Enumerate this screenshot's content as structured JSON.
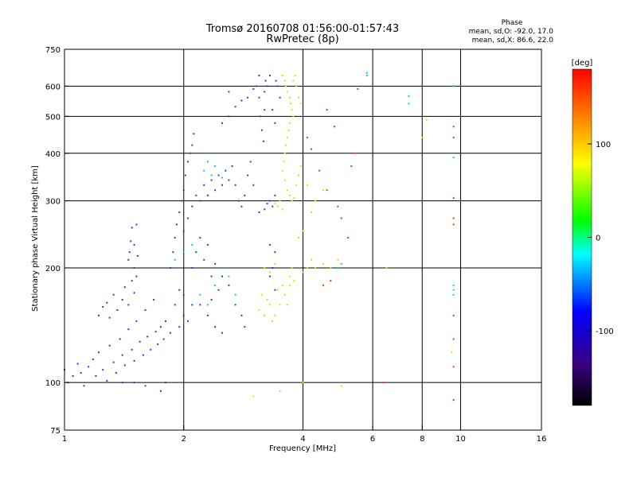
{
  "header": {
    "title_line1": "Tromsø 20160708 01:56:00-01:57:43",
    "title_line2": "RwPretec (8p)"
  },
  "phase_summary": {
    "heading": "Phase",
    "line_o": "mean, sd,O:  -92.0,  17.0",
    "line_x": "mean, sd,X:   86.6,  22.0"
  },
  "chart_data": {
    "type": "scatter",
    "xlabel": "Frequency [MHz]",
    "ylabel": "Stationary phase Virtual Height [km]",
    "x_scale": "log",
    "y_scale": "log",
    "xlim": [
      1,
      16
    ],
    "ylim": [
      75,
      750
    ],
    "x_ticks": [
      1,
      2,
      4,
      6,
      8,
      10,
      16
    ],
    "y_ticks": [
      75,
      100,
      200,
      300,
      400,
      500,
      600,
      750
    ],
    "grid_x": [
      2,
      4,
      6,
      8,
      10
    ],
    "grid_y": [
      100,
      200,
      300,
      400,
      500,
      600
    ],
    "grid": true,
    "colorbar": {
      "label": "[deg]",
      "range": [
        -180,
        180
      ],
      "ticks": [
        100,
        0,
        -100
      ],
      "colors": [
        "#000000",
        "#3a007f",
        "#0000ff",
        "#00ffff",
        "#00ff00",
        "#ffff00",
        "#ff0000"
      ]
    },
    "series": [
      {
        "points": [
          [
            1.0,
            108
          ],
          [
            1.02,
            100
          ],
          [
            1.05,
            104
          ],
          [
            1.08,
            112
          ],
          [
            1.1,
            106
          ],
          [
            1.12,
            98
          ],
          [
            1.15,
            110
          ],
          [
            1.18,
            115
          ],
          [
            1.2,
            104
          ],
          [
            1.22,
            120
          ],
          [
            1.25,
            108
          ],
          [
            1.28,
            101
          ],
          [
            1.3,
            125
          ],
          [
            1.33,
            113
          ],
          [
            1.35,
            106
          ],
          [
            1.38,
            130
          ],
          [
            1.4,
            118
          ],
          [
            1.42,
            111
          ],
          [
            1.45,
            138
          ],
          [
            1.48,
            122
          ],
          [
            1.5,
            114
          ],
          [
            1.52,
            145
          ],
          [
            1.55,
            128
          ],
          [
            1.58,
            118
          ],
          [
            1.6,
            155
          ],
          [
            1.62,
            132
          ],
          [
            1.65,
            122
          ],
          [
            1.68,
            165
          ],
          [
            1.7,
            136
          ],
          [
            1.72,
            126
          ],
          [
            1.75,
            140
          ],
          [
            1.78,
            130
          ],
          [
            1.8,
            145
          ],
          [
            1.85,
            135
          ],
          [
            1.9,
            160
          ],
          [
            1.95,
            175
          ],
          [
            1.22,
            150
          ],
          [
            1.25,
            158
          ],
          [
            1.28,
            162
          ],
          [
            1.3,
            148
          ],
          [
            1.33,
            170
          ],
          [
            1.36,
            155
          ],
          [
            1.4,
            165
          ],
          [
            1.42,
            178
          ],
          [
            1.45,
            160
          ],
          [
            1.48,
            185
          ],
          [
            1.5,
            172
          ],
          [
            1.52,
            190
          ],
          [
            1.45,
            210
          ],
          [
            1.47,
            235
          ],
          [
            1.48,
            255
          ],
          [
            1.5,
            230
          ],
          [
            1.52,
            260
          ],
          [
            1.46,
            220
          ],
          [
            1.5,
            200
          ],
          [
            1.53,
            215
          ],
          [
            1.85,
            200
          ],
          [
            1.88,
            220
          ],
          [
            1.9,
            240
          ],
          [
            1.92,
            260
          ],
          [
            1.95,
            280
          ],
          [
            1.98,
            300
          ],
          [
            2.0,
            320
          ],
          [
            2.02,
            350
          ],
          [
            2.05,
            380
          ],
          [
            2.08,
            400
          ],
          [
            2.1,
            420
          ],
          [
            2.12,
            450
          ],
          [
            2.0,
            250
          ],
          [
            2.05,
            270
          ],
          [
            2.1,
            290
          ],
          [
            2.15,
            310
          ],
          [
            2.2,
            300
          ],
          [
            2.25,
            330
          ],
          [
            2.3,
            310
          ],
          [
            2.35,
            340
          ],
          [
            2.4,
            320
          ],
          [
            2.45,
            350
          ],
          [
            2.5,
            330
          ],
          [
            2.55,
            360
          ],
          [
            2.6,
            340
          ],
          [
            2.65,
            370
          ],
          [
            2.7,
            330
          ],
          [
            2.75,
            300
          ],
          [
            2.8,
            290
          ],
          [
            2.85,
            310
          ],
          [
            2.9,
            350
          ],
          [
            2.95,
            380
          ],
          [
            3.0,
            330
          ],
          [
            2.1,
            200
          ],
          [
            2.15,
            220
          ],
          [
            2.2,
            240
          ],
          [
            2.25,
            210
          ],
          [
            2.3,
            230
          ],
          [
            2.35,
            190
          ],
          [
            2.4,
            205
          ],
          [
            2.45,
            175
          ],
          [
            2.5,
            190
          ],
          [
            2.6,
            180
          ],
          [
            2.7,
            160
          ],
          [
            2.8,
            150
          ],
          [
            2.85,
            140
          ],
          [
            2.3,
            150
          ],
          [
            2.35,
            165
          ],
          [
            2.2,
            160
          ],
          [
            2.4,
            140
          ],
          [
            2.5,
            135
          ],
          [
            2.0,
            150
          ],
          [
            2.05,
            145
          ],
          [
            2.1,
            160
          ],
          [
            1.95,
            140
          ],
          [
            2.0,
            170
          ],
          [
            2.5,
            480
          ],
          [
            2.6,
            500
          ],
          [
            2.7,
            530
          ],
          [
            2.8,
            550
          ],
          [
            2.9,
            560
          ],
          [
            3.0,
            590
          ],
          [
            2.6,
            580
          ],
          [
            3.05,
            600
          ],
          [
            3.1,
            560
          ],
          [
            3.12,
            500
          ],
          [
            3.15,
            460
          ],
          [
            3.18,
            430
          ],
          [
            3.2,
            520
          ],
          [
            3.22,
            620
          ],
          [
            3.25,
            600
          ],
          [
            3.1,
            640
          ],
          [
            3.2,
            580
          ],
          [
            3.3,
            640
          ],
          [
            3.35,
            520
          ],
          [
            3.4,
            480
          ],
          [
            3.45,
            600
          ],
          [
            3.5,
            560
          ],
          [
            3.42,
            620
          ],
          [
            3.3,
            300
          ],
          [
            3.35,
            290
          ],
          [
            3.4,
            310
          ],
          [
            3.2,
            285
          ],
          [
            3.25,
            295
          ],
          [
            3.1,
            280
          ],
          [
            3.3,
            230
          ],
          [
            3.4,
            220
          ],
          [
            3.3,
            190
          ],
          [
            3.4,
            175
          ],
          [
            3.35,
            200
          ],
          [
            1.5,
            100
          ],
          [
            1.6,
            98
          ],
          [
            1.75,
            95
          ],
          [
            1.4,
            100
          ],
          [
            1.8,
            100
          ]
        ]
      },
      {
        "points": [
          [
            3.55,
            640
          ],
          [
            3.6,
            620
          ],
          [
            3.62,
            600
          ],
          [
            3.65,
            580
          ],
          [
            3.7,
            560
          ],
          [
            3.72,
            540
          ],
          [
            3.75,
            520
          ],
          [
            3.78,
            500
          ],
          [
            3.7,
            480
          ],
          [
            3.68,
            460
          ],
          [
            3.65,
            440
          ],
          [
            3.62,
            420
          ],
          [
            3.6,
            400
          ],
          [
            3.58,
            380
          ],
          [
            3.55,
            360
          ],
          [
            3.6,
            340
          ],
          [
            3.65,
            320
          ],
          [
            3.7,
            310
          ],
          [
            3.75,
            300
          ],
          [
            3.8,
            305
          ],
          [
            3.85,
            330
          ],
          [
            3.9,
            350
          ],
          [
            3.95,
            370
          ],
          [
            3.78,
            620
          ],
          [
            3.82,
            640
          ],
          [
            3.85,
            600
          ],
          [
            3.9,
            560
          ],
          [
            3.95,
            540
          ],
          [
            3.5,
            300
          ],
          [
            3.45,
            290
          ],
          [
            3.55,
            285
          ],
          [
            3.4,
            295
          ],
          [
            3.3,
            160
          ],
          [
            3.2,
            150
          ],
          [
            3.1,
            155
          ],
          [
            3.35,
            145
          ],
          [
            3.4,
            150
          ],
          [
            3.5,
            160
          ],
          [
            3.6,
            170
          ],
          [
            3.7,
            180
          ],
          [
            3.8,
            185
          ],
          [
            3.25,
            165
          ],
          [
            3.15,
            170
          ],
          [
            3.45,
            175
          ],
          [
            3.55,
            180
          ],
          [
            3.65,
            160
          ],
          [
            3.7,
            190
          ],
          [
            3.75,
            200
          ],
          [
            3.2,
            200
          ],
          [
            3.3,
            195
          ],
          [
            3.4,
            205
          ],
          [
            4.0,
            195
          ],
          [
            4.1,
            200
          ],
          [
            4.2,
            210
          ],
          [
            4.3,
            200
          ],
          [
            4.5,
            205
          ],
          [
            4.7,
            200
          ],
          [
            4.9,
            210
          ],
          [
            3.9,
            240
          ],
          [
            4.0,
            250
          ],
          [
            4.2,
            280
          ],
          [
            4.3,
            300
          ],
          [
            4.5,
            320
          ],
          [
            4.1,
            330
          ],
          [
            8.2,
            490
          ],
          [
            8.0,
            440
          ],
          [
            6.5,
            200
          ],
          [
            9.5,
            120
          ],
          [
            3.0,
            92
          ],
          [
            3.5,
            95
          ],
          [
            4.0,
            100
          ],
          [
            5.0,
            98
          ]
        ]
      },
      {
        "points": [
          [
            5.5,
            590
          ],
          [
            5.4,
            400
          ],
          [
            5.3,
            370
          ],
          [
            4.8,
            470
          ],
          [
            4.6,
            520
          ],
          [
            4.4,
            360
          ],
          [
            4.6,
            320
          ],
          [
            4.9,
            290
          ],
          [
            5.0,
            270
          ],
          [
            5.2,
            240
          ],
          [
            4.1,
            440
          ],
          [
            4.2,
            410
          ],
          [
            9.6,
            470
          ],
          [
            9.6,
            440
          ],
          [
            9.6,
            270
          ],
          [
            9.6,
            260
          ],
          [
            9.6,
            305
          ],
          [
            9.6,
            150
          ],
          [
            9.6,
            130
          ],
          [
            9.6,
            110
          ],
          [
            9.6,
            90
          ],
          [
            4.5,
            180
          ],
          [
            4.7,
            185
          ],
          [
            6.4,
            100
          ]
        ]
      },
      {
        "points": [
          [
            9.6,
            180
          ],
          [
            9.6,
            170
          ],
          [
            9.6,
            175
          ],
          [
            9.6,
            390
          ],
          [
            9.6,
            600
          ],
          [
            7.4,
            565
          ],
          [
            7.4,
            540
          ],
          [
            5.8,
            650
          ],
          [
            5.8,
            640
          ],
          [
            4.9,
            200
          ],
          [
            5.0,
            205
          ],
          [
            2.2,
            170
          ],
          [
            2.3,
            160
          ],
          [
            2.4,
            180
          ],
          [
            2.6,
            190
          ],
          [
            2.7,
            170
          ],
          [
            2.1,
            230
          ],
          [
            2.0,
            220
          ],
          [
            1.9,
            210
          ],
          [
            2.3,
            380
          ],
          [
            2.25,
            360
          ],
          [
            2.35,
            350
          ],
          [
            2.4,
            370
          ],
          [
            2.5,
            345
          ]
        ]
      }
    ]
  }
}
